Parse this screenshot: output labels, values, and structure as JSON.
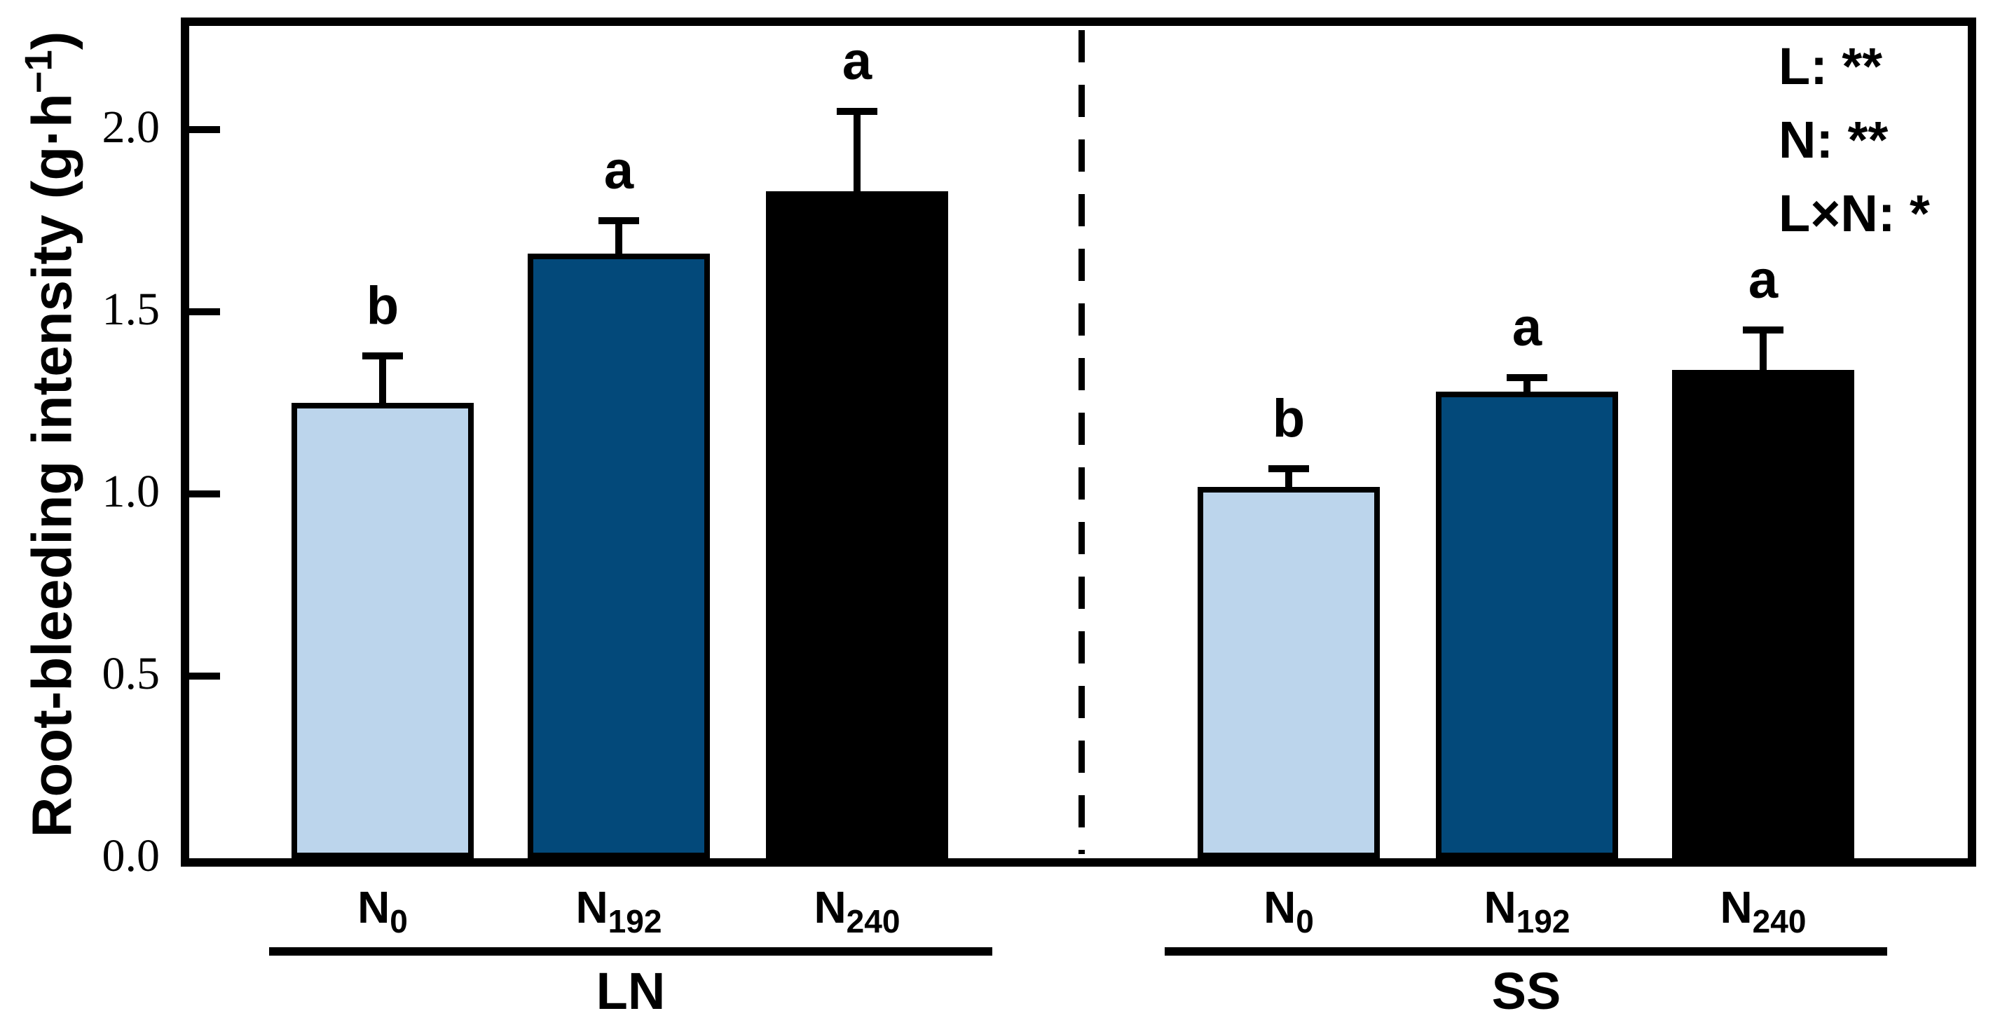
{
  "figure": {
    "y_axis": {
      "title_prefix": "Root-bleeding intensity (g·h",
      "title_sup": "−1",
      "title_suffix": ")",
      "ticks": [
        "0.0",
        "0.5",
        "1.0",
        "1.5",
        "2.0"
      ]
    },
    "annotations": {
      "line1": "L: **",
      "line2": "N: **",
      "line3": "L×N: *"
    }
  },
  "colors": {
    "light_blue": "#BCD5EC",
    "dark_blue": "#03497A",
    "black": "#000000"
  },
  "chart_data": {
    "type": "bar",
    "title": "",
    "xlabel": "",
    "ylabel": "Root-bleeding intensity (g·h⁻¹)",
    "ylim": [
      0,
      2.3
    ],
    "ytick_values": [
      0.0,
      0.5,
      1.0,
      1.5,
      2.0
    ],
    "grid": false,
    "legend_position": "top-right-inside",
    "error_bars": "upper SE, capped",
    "groups": [
      {
        "label": "LN",
        "bars": [
          {
            "label_base": "N",
            "label_sub": "0",
            "value": 1.25,
            "error": 0.12,
            "letter": "b",
            "fill": "#BCD5EC"
          },
          {
            "label_base": "N",
            "label_sub": "192",
            "value": 1.66,
            "error": 0.08,
            "letter": "a",
            "fill": "#03497A"
          },
          {
            "label_base": "N",
            "label_sub": "240",
            "value": 1.83,
            "error": 0.21,
            "letter": "a",
            "fill": "#000000"
          }
        ]
      },
      {
        "label": "SS",
        "bars": [
          {
            "label_base": "N",
            "label_sub": "0",
            "value": 1.02,
            "error": 0.04,
            "letter": "b",
            "fill": "#BCD5EC"
          },
          {
            "label_base": "N",
            "label_sub": "192",
            "value": 1.28,
            "error": 0.03,
            "letter": "a",
            "fill": "#03497A"
          },
          {
            "label_base": "N",
            "label_sub": "240",
            "value": 1.34,
            "error": 0.1,
            "letter": "a",
            "fill": "#000000"
          }
        ]
      }
    ]
  }
}
